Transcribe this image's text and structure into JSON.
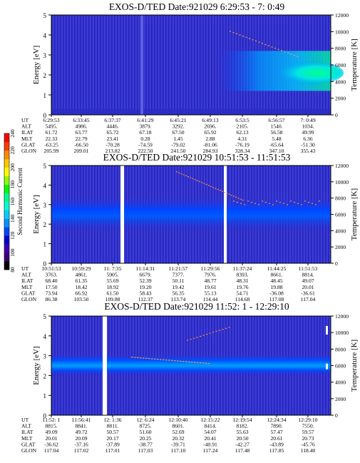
{
  "colorbar": {
    "label": "Second Harmonic Current",
    "ticks": [
      "80",
      "100",
      "120",
      "140",
      "160",
      "180",
      "200",
      "220",
      "240"
    ],
    "colors": [
      "#000000",
      "#3c0078",
      "#3c00b4",
      "#0000d2",
      "#0046ff",
      "#0096ff",
      "#00d2ff",
      "#00ffd2",
      "#00ff8c",
      "#00ff00",
      "#8cff00",
      "#ffff00",
      "#ffc800",
      "#ff8c00",
      "#ff3c00",
      "#ff0000"
    ]
  },
  "chart_data": [
    {
      "type": "heatmap",
      "title": "EXOS-D/TED   Date:921029   6:29:53 - 7: 0:49",
      "ylabel": "Energy [eV]",
      "ylabel2": "Temperature [K]",
      "ylim": [
        0,
        5
      ],
      "yticks": [
        "0",
        "1",
        "2",
        "3",
        "4",
        "5"
      ],
      "ylim2": [
        0,
        12000
      ],
      "yticks2": [
        "0",
        "2000",
        "4000",
        "6000",
        "8000",
        "10000",
        "12000"
      ],
      "rows": [
        "UT",
        "ALT",
        "ILAT",
        "MLT",
        "GLAT",
        "GLON"
      ],
      "columns": [
        [
          "6:29:53",
          "5495.",
          "61.72",
          "22.33",
          "-63.25",
          "205.99"
        ],
        [
          "6:33:45",
          "4986.",
          "63.77",
          "22.79",
          "-66.50",
          "209.01"
        ],
        [
          "6:37:37",
          "4446.",
          "65.72",
          "23.41",
          "-70.28",
          "213.82"
        ],
        [
          "6:41:29",
          "3879.",
          "67.18",
          "0.28",
          "-74.59",
          "222.50"
        ],
        [
          "6:45:21",
          "3292.",
          "67.50",
          "1.45",
          "-79.02",
          "241.50"
        ],
        [
          "6:49:13",
          "2696.",
          "65.92",
          "2.88",
          "-81.06",
          "284.93"
        ],
        [
          "6:53:5",
          "2105.",
          "62.13",
          "4.31",
          "-76.19",
          "328.34"
        ],
        [
          "6:56:57",
          "1540.",
          "56.58",
          "5.48",
          "-65.64",
          "347.10"
        ],
        [
          "7: 0:49",
          "1034.",
          "49.99",
          "6.36",
          "-51.30",
          "355.43"
        ]
      ]
    },
    {
      "type": "heatmap",
      "title": "EXOS-D/TED   Date:921029   10:51:53 - 11:51:53",
      "ylabel": "Energy [eV]",
      "ylabel2": "Temperature [K]",
      "ylim": [
        0,
        5
      ],
      "yticks": [
        "0",
        "1",
        "2",
        "3",
        "4",
        "5"
      ],
      "ylim2": [
        0,
        12000
      ],
      "yticks2": [
        "0",
        "2000",
        "4000",
        "6000",
        "8000",
        "10000",
        "12000"
      ],
      "rows": [
        "UT",
        "ALT",
        "ILAT",
        "MLT",
        "GLAT",
        "GLON"
      ],
      "columns": [
        [
          "10:51:53",
          "3763.",
          "68.40",
          "17.50",
          "73.94",
          "86.38"
        ],
        [
          "10:59:29",
          "4861.",
          "61.35",
          "18.42",
          "66.92",
          "103.50"
        ],
        [
          "11: 7:35",
          "5905.",
          "55.69",
          "18.92",
          "61.50",
          "109.88"
        ],
        [
          "11:14:31",
          "6679.",
          "52.39",
          "19.20",
          "58.43",
          "112.37"
        ],
        [
          "11:21:57",
          "7377.",
          "50.11",
          "19.42",
          "56.35",
          "113.74"
        ],
        [
          "11:29:56",
          "7976.",
          "48.77",
          "19.61",
          "55.13",
          "114.44"
        ],
        [
          "11:37:24",
          "8393.",
          "48.31",
          "19.76",
          "54.71",
          "114.68"
        ],
        [
          "11:44:25",
          "8661.",
          "48.45",
          "19.88",
          "-36.08",
          "117.08"
        ],
        [
          "11:51:53",
          "8814.",
          "49.07",
          "20.01",
          "-36.61",
          "117.04"
        ]
      ]
    },
    {
      "type": "heatmap",
      "title": "EXOS-D/TED   Date:921029   11:52: 1 - 12:29:10",
      "ylabel": "Energy [eV]",
      "ylabel2": "Temperature [K]",
      "ylim": [
        0,
        5
      ],
      "yticks": [
        "0",
        "1",
        "2",
        "3",
        "4",
        "5"
      ],
      "ylim2": [
        0,
        12000
      ],
      "yticks2": [
        "0",
        "2000",
        "4000",
        "6000",
        "8000",
        "10000",
        "12000"
      ],
      "rows": [
        "UT",
        "ALT",
        "ILAT",
        "MLT",
        "GLAT",
        "GLON"
      ],
      "columns": [
        [
          "11:52: 1",
          "8815.",
          "49.09",
          "20.01",
          "-36.62",
          "117.04"
        ],
        [
          "11:56:41",
          "8841.",
          "49.72",
          "20.09",
          "-37.16",
          "117.02"
        ],
        [
          "12: 1:36",
          "8811.",
          "50.57",
          "20.17",
          "-37.89",
          "117.01"
        ],
        [
          "12: 6:24",
          "8725.",
          "51.60",
          "20.25",
          "-38.77",
          "117.03"
        ],
        [
          "12:10:40",
          "8601.",
          "52.69",
          "20.32",
          "-39.71",
          "117.10"
        ],
        [
          "12:15:22",
          "8414.",
          "54.07",
          "20.41",
          "-40.91",
          "117.24"
        ],
        [
          "12:19:54",
          "8182.",
          "55.63",
          "20.50",
          "-42.27",
          "117.48"
        ],
        [
          "12:24:34",
          "7890.",
          "57.47",
          "20.61",
          "-43.89",
          "117.85"
        ],
        [
          "12:29:10",
          "7550.",
          "59.57",
          "20.73",
          "-45.76",
          "118.40"
        ]
      ]
    }
  ]
}
